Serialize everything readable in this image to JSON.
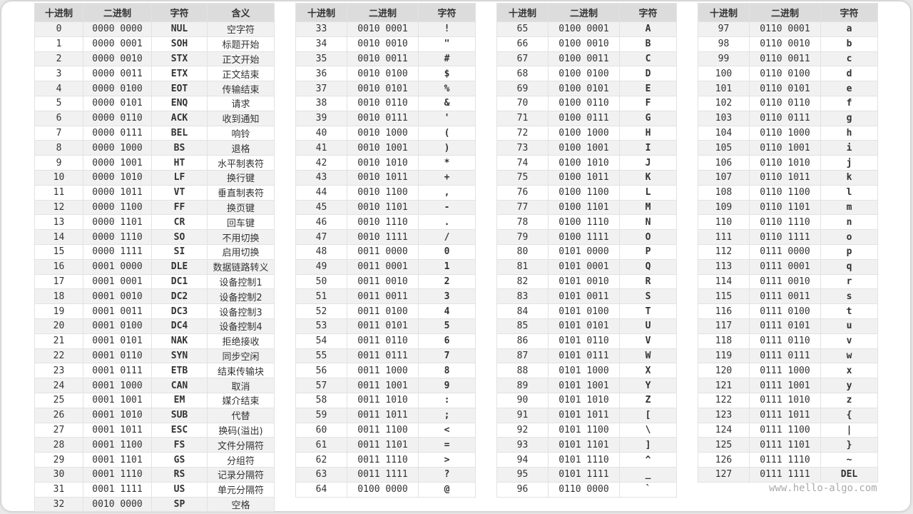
{
  "headers": {
    "dec": "十进制",
    "bin": "二进制",
    "char": "字符",
    "meaning": "含义"
  },
  "watermark": "www.hello-algo.com",
  "tables": [
    [
      [
        "0",
        "0000 0000",
        "NUL",
        "空字符"
      ],
      [
        "1",
        "0000 0001",
        "SOH",
        "标题开始"
      ],
      [
        "2",
        "0000 0010",
        "STX",
        "正文开始"
      ],
      [
        "3",
        "0000 0011",
        "ETX",
        "正文结束"
      ],
      [
        "4",
        "0000 0100",
        "EOT",
        "传输结束"
      ],
      [
        "5",
        "0000 0101",
        "ENQ",
        "请求"
      ],
      [
        "6",
        "0000 0110",
        "ACK",
        "收到通知"
      ],
      [
        "7",
        "0000 0111",
        "BEL",
        "响铃"
      ],
      [
        "8",
        "0000 1000",
        "BS",
        "退格"
      ],
      [
        "9",
        "0000 1001",
        "HT",
        "水平制表符"
      ],
      [
        "10",
        "0000 1010",
        "LF",
        "换行键"
      ],
      [
        "11",
        "0000 1011",
        "VT",
        "垂直制表符"
      ],
      [
        "12",
        "0000 1100",
        "FF",
        "换页键"
      ],
      [
        "13",
        "0000 1101",
        "CR",
        "回车键"
      ],
      [
        "14",
        "0000 1110",
        "SO",
        "不用切换"
      ],
      [
        "15",
        "0000 1111",
        "SI",
        "启用切换"
      ],
      [
        "16",
        "0001 0000",
        "DLE",
        "数据链路转义"
      ],
      [
        "17",
        "0001 0001",
        "DC1",
        "设备控制1"
      ],
      [
        "18",
        "0001 0010",
        "DC2",
        "设备控制2"
      ],
      [
        "19",
        "0001 0011",
        "DC3",
        "设备控制3"
      ],
      [
        "20",
        "0001 0100",
        "DC4",
        "设备控制4"
      ],
      [
        "21",
        "0001 0101",
        "NAK",
        "拒绝接收"
      ],
      [
        "22",
        "0001 0110",
        "SYN",
        "同步空闲"
      ],
      [
        "23",
        "0001 0111",
        "ETB",
        "结束传输块"
      ],
      [
        "24",
        "0001 1000",
        "CAN",
        "取消"
      ],
      [
        "25",
        "0001 1001",
        "EM",
        "媒介结束"
      ],
      [
        "26",
        "0001 1010",
        "SUB",
        "代替"
      ],
      [
        "27",
        "0001 1011",
        "ESC",
        "换码(溢出)"
      ],
      [
        "28",
        "0001 1100",
        "FS",
        "文件分隔符"
      ],
      [
        "29",
        "0001 1101",
        "GS",
        "分组符"
      ],
      [
        "30",
        "0001 1110",
        "RS",
        "记录分隔符"
      ],
      [
        "31",
        "0001 1111",
        "US",
        "单元分隔符"
      ],
      [
        "32",
        "0010 0000",
        "SP",
        "空格"
      ]
    ],
    [
      [
        "33",
        "0010 0001",
        "!"
      ],
      [
        "34",
        "0010 0010",
        "\""
      ],
      [
        "35",
        "0010 0011",
        "#"
      ],
      [
        "36",
        "0010 0100",
        "$"
      ],
      [
        "37",
        "0010 0101",
        "%"
      ],
      [
        "38",
        "0010 0110",
        "&"
      ],
      [
        "39",
        "0010 0111",
        "'"
      ],
      [
        "40",
        "0010 1000",
        "("
      ],
      [
        "41",
        "0010 1001",
        ")"
      ],
      [
        "42",
        "0010 1010",
        "*"
      ],
      [
        "43",
        "0010 1011",
        "+"
      ],
      [
        "44",
        "0010 1100",
        ","
      ],
      [
        "45",
        "0010 1101",
        "-"
      ],
      [
        "46",
        "0010 1110",
        "."
      ],
      [
        "47",
        "0010 1111",
        "/"
      ],
      [
        "48",
        "0011 0000",
        "0"
      ],
      [
        "49",
        "0011 0001",
        "1"
      ],
      [
        "50",
        "0011 0010",
        "2"
      ],
      [
        "51",
        "0011 0011",
        "3"
      ],
      [
        "52",
        "0011 0100",
        "4"
      ],
      [
        "53",
        "0011 0101",
        "5"
      ],
      [
        "54",
        "0011 0110",
        "6"
      ],
      [
        "55",
        "0011 0111",
        "7"
      ],
      [
        "56",
        "0011 1000",
        "8"
      ],
      [
        "57",
        "0011 1001",
        "9"
      ],
      [
        "58",
        "0011 1010",
        ":"
      ],
      [
        "59",
        "0011 1011",
        ";"
      ],
      [
        "60",
        "0011 1100",
        "<"
      ],
      [
        "61",
        "0011 1101",
        "="
      ],
      [
        "62",
        "0011 1110",
        ">"
      ],
      [
        "63",
        "0011 1111",
        "?"
      ],
      [
        "64",
        "0100 0000",
        "@"
      ]
    ],
    [
      [
        "65",
        "0100 0001",
        "A"
      ],
      [
        "66",
        "0100 0010",
        "B"
      ],
      [
        "67",
        "0100 0011",
        "C"
      ],
      [
        "68",
        "0100 0100",
        "D"
      ],
      [
        "69",
        "0100 0101",
        "E"
      ],
      [
        "70",
        "0100 0110",
        "F"
      ],
      [
        "71",
        "0100 0111",
        "G"
      ],
      [
        "72",
        "0100 1000",
        "H"
      ],
      [
        "73",
        "0100 1001",
        "I"
      ],
      [
        "74",
        "0100 1010",
        "J"
      ],
      [
        "75",
        "0100 1011",
        "K"
      ],
      [
        "76",
        "0100 1100",
        "L"
      ],
      [
        "77",
        "0100 1101",
        "M"
      ],
      [
        "78",
        "0100 1110",
        "N"
      ],
      [
        "79",
        "0100 1111",
        "O"
      ],
      [
        "80",
        "0101 0000",
        "P"
      ],
      [
        "81",
        "0101 0001",
        "Q"
      ],
      [
        "82",
        "0101 0010",
        "R"
      ],
      [
        "83",
        "0101 0011",
        "S"
      ],
      [
        "84",
        "0101 0100",
        "T"
      ],
      [
        "85",
        "0101 0101",
        "U"
      ],
      [
        "86",
        "0101 0110",
        "V"
      ],
      [
        "87",
        "0101 0111",
        "W"
      ],
      [
        "88",
        "0101 1000",
        "X"
      ],
      [
        "89",
        "0101 1001",
        "Y"
      ],
      [
        "90",
        "0101 1010",
        "Z"
      ],
      [
        "91",
        "0101 1011",
        "["
      ],
      [
        "92",
        "0101 1100",
        "\\"
      ],
      [
        "93",
        "0101 1101",
        "]"
      ],
      [
        "94",
        "0101 1110",
        "^"
      ],
      [
        "95",
        "0101 1111",
        "_"
      ],
      [
        "96",
        "0110 0000",
        "`"
      ]
    ],
    [
      [
        "97",
        "0110 0001",
        "a"
      ],
      [
        "98",
        "0110 0010",
        "b"
      ],
      [
        "99",
        "0110 0011",
        "c"
      ],
      [
        "100",
        "0110 0100",
        "d"
      ],
      [
        "101",
        "0110 0101",
        "e"
      ],
      [
        "102",
        "0110 0110",
        "f"
      ],
      [
        "103",
        "0110 0111",
        "g"
      ],
      [
        "104",
        "0110 1000",
        "h"
      ],
      [
        "105",
        "0110 1001",
        "i"
      ],
      [
        "106",
        "0110 1010",
        "j"
      ],
      [
        "107",
        "0110 1011",
        "k"
      ],
      [
        "108",
        "0110 1100",
        "l"
      ],
      [
        "109",
        "0110 1101",
        "m"
      ],
      [
        "110",
        "0110 1110",
        "n"
      ],
      [
        "111",
        "0110 1111",
        "o"
      ],
      [
        "112",
        "0111 0000",
        "p"
      ],
      [
        "113",
        "0111 0001",
        "q"
      ],
      [
        "114",
        "0111 0010",
        "r"
      ],
      [
        "115",
        "0111 0011",
        "s"
      ],
      [
        "116",
        "0111 0100",
        "t"
      ],
      [
        "117",
        "0111 0101",
        "u"
      ],
      [
        "118",
        "0111 0110",
        "v"
      ],
      [
        "119",
        "0111 0111",
        "w"
      ],
      [
        "120",
        "0111 1000",
        "x"
      ],
      [
        "121",
        "0111 1001",
        "y"
      ],
      [
        "122",
        "0111 1010",
        "z"
      ],
      [
        "123",
        "0111 1011",
        "{"
      ],
      [
        "124",
        "0111 1100",
        "|"
      ],
      [
        "125",
        "0111 1101",
        "}"
      ],
      [
        "126",
        "0111 1110",
        "~"
      ],
      [
        "127",
        "0111 1111",
        "DEL"
      ]
    ]
  ]
}
